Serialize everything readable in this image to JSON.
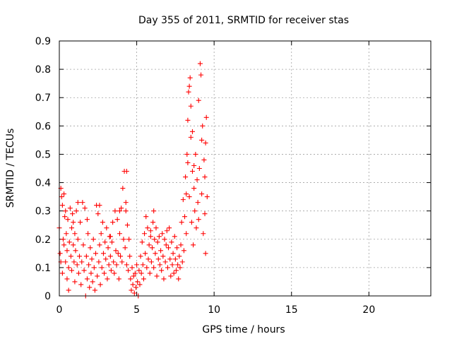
{
  "chart_data": {
    "type": "scatter",
    "title": "Day 355 of 2011, SRMTID for receiver stas",
    "xlabel": "GPS time / hours",
    "ylabel": "SRMTID / TECUs",
    "xlim": [
      0,
      24
    ],
    "ylim": [
      0,
      0.9
    ],
    "xticks": [
      0,
      5,
      10,
      15,
      20
    ],
    "xtick_labels": [
      "0",
      "5",
      "10",
      "15",
      "20"
    ],
    "yticks": [
      0,
      0.1,
      0.2,
      0.3,
      0.4,
      0.5,
      0.6,
      0.7,
      0.8,
      0.9
    ],
    "ytick_labels": [
      "0",
      "0.1",
      "0.2",
      "0.3",
      "0.4",
      "0.5",
      "0.6",
      "0.7",
      "0.8",
      "0.9"
    ],
    "grid": true,
    "marker": "+",
    "color": "#ff0000",
    "series": [
      {
        "name": "stas",
        "points": [
          [
            0.0,
            0.24
          ],
          [
            0.05,
            0.15
          ],
          [
            0.1,
            0.38
          ],
          [
            0.1,
            0.12
          ],
          [
            0.15,
            0.35
          ],
          [
            0.2,
            0.32
          ],
          [
            0.2,
            0.08
          ],
          [
            0.25,
            0.2
          ],
          [
            0.3,
            0.36
          ],
          [
            0.3,
            0.18
          ],
          [
            0.35,
            0.28
          ],
          [
            0.4,
            0.12
          ],
          [
            0.45,
            0.22
          ],
          [
            0.5,
            0.06
          ],
          [
            0.5,
            0.16
          ],
          [
            0.55,
            0.27
          ],
          [
            0.6,
            0.02
          ],
          [
            0.6,
            0.1
          ],
          [
            0.65,
            0.19
          ],
          [
            0.7,
            0.31
          ],
          [
            0.75,
            0.14
          ],
          [
            0.8,
            0.09
          ],
          [
            0.8,
            0.24
          ],
          [
            0.85,
            0.29
          ],
          [
            0.9,
            0.18
          ],
          [
            0.95,
            0.12
          ],
          [
            1.0,
            0.22
          ],
          [
            1.0,
            0.05
          ],
          [
            1.05,
            0.16
          ],
          [
            1.1,
            0.3
          ],
          [
            1.15,
            0.11
          ],
          [
            1.2,
            0.2
          ],
          [
            1.25,
            0.08
          ],
          [
            1.3,
            0.14
          ],
          [
            1.35,
            0.26
          ],
          [
            1.4,
            0.04
          ],
          [
            1.45,
            0.12
          ],
          [
            1.5,
            0.33
          ],
          [
            1.55,
            0.18
          ],
          [
            1.6,
            0.09
          ],
          [
            1.65,
            0.31
          ],
          [
            1.7,
            0.0
          ],
          [
            1.75,
            0.14
          ],
          [
            1.8,
            0.06
          ],
          [
            1.85,
            0.22
          ],
          [
            1.9,
            0.11
          ],
          [
            1.95,
            0.03
          ],
          [
            2.0,
            0.17
          ],
          [
            2.05,
            0.08
          ],
          [
            2.1,
            0.13
          ],
          [
            2.15,
            0.05
          ],
          [
            2.2,
            0.2
          ],
          [
            2.25,
            0.1
          ],
          [
            2.3,
            0.02
          ],
          [
            2.35,
            0.15
          ],
          [
            2.4,
            0.32
          ],
          [
            2.45,
            0.07
          ],
          [
            2.5,
            0.29
          ],
          [
            2.55,
            0.12
          ],
          [
            2.6,
            0.18
          ],
          [
            2.65,
            0.04
          ],
          [
            2.7,
            0.22
          ],
          [
            2.75,
            0.1
          ],
          [
            2.8,
            0.26
          ],
          [
            2.85,
            0.15
          ],
          [
            2.9,
            0.08
          ],
          [
            2.95,
            0.19
          ],
          [
            3.0,
            0.13
          ],
          [
            3.05,
            0.24
          ],
          [
            3.1,
            0.06
          ],
          [
            3.15,
            0.17
          ],
          [
            3.2,
            0.11
          ],
          [
            3.25,
            0.21
          ],
          [
            3.3,
            0.14
          ],
          [
            3.35,
            0.09
          ],
          [
            3.4,
            0.19
          ],
          [
            3.45,
            0.26
          ],
          [
            3.5,
            0.12
          ],
          [
            3.55,
            0.08
          ],
          [
            3.6,
            0.3
          ],
          [
            3.65,
            0.16
          ],
          [
            3.7,
            0.11
          ],
          [
            3.75,
            0.27
          ],
          [
            3.8,
            0.15
          ],
          [
            3.85,
            0.06
          ],
          [
            3.9,
            0.22
          ],
          [
            3.95,
            0.14
          ],
          [
            4.0,
            0.31
          ],
          [
            4.05,
            0.12
          ],
          [
            4.1,
            0.38
          ],
          [
            4.15,
            0.2
          ],
          [
            4.2,
            0.44
          ],
          [
            4.25,
            0.17
          ],
          [
            4.3,
            0.33
          ],
          [
            4.35,
            0.11
          ],
          [
            4.35,
            0.44
          ],
          [
            4.4,
            0.25
          ],
          [
            4.45,
            0.09
          ],
          [
            4.5,
            0.2
          ],
          [
            4.55,
            0.14
          ],
          [
            4.6,
            0.06
          ],
          [
            4.65,
            0.02
          ],
          [
            4.7,
            0.1
          ],
          [
            4.75,
            0.04
          ],
          [
            4.8,
            0.07
          ],
          [
            4.85,
            0.01
          ],
          [
            4.9,
            0.08
          ],
          [
            4.95,
            0.03
          ],
          [
            5.0,
            0.11
          ],
          [
            5.05,
            0.05
          ],
          [
            5.1,
            0.0
          ],
          [
            5.15,
            0.09
          ],
          [
            5.2,
            0.04
          ],
          [
            5.25,
            0.14
          ],
          [
            5.3,
            0.08
          ],
          [
            5.35,
            0.19
          ],
          [
            5.4,
            0.11
          ],
          [
            5.45,
            0.06
          ],
          [
            5.5,
            0.22
          ],
          [
            5.55,
            0.15
          ],
          [
            5.6,
            0.28
          ],
          [
            5.65,
            0.1
          ],
          [
            5.7,
            0.24
          ],
          [
            5.75,
            0.13
          ],
          [
            5.8,
            0.18
          ],
          [
            5.85,
            0.08
          ],
          [
            5.9,
            0.21
          ],
          [
            5.95,
            0.12
          ],
          [
            6.0,
            0.17
          ],
          [
            6.05,
            0.26
          ],
          [
            6.1,
            0.1
          ],
          [
            6.15,
            0.2
          ],
          [
            6.2,
            0.15
          ],
          [
            6.25,
            0.24
          ],
          [
            6.3,
            0.07
          ],
          [
            6.35,
            0.19
          ],
          [
            6.4,
            0.13
          ],
          [
            6.45,
            0.21
          ],
          [
            6.5,
            0.11
          ],
          [
            6.55,
            0.16
          ],
          [
            6.6,
            0.09
          ],
          [
            6.65,
            0.22
          ],
          [
            6.7,
            0.14
          ],
          [
            6.75,
            0.06
          ],
          [
            6.8,
            0.2
          ],
          [
            6.85,
            0.12
          ],
          [
            6.9,
            0.18
          ],
          [
            6.95,
            0.23
          ],
          [
            7.0,
            0.1
          ],
          [
            7.05,
            0.17
          ],
          [
            7.1,
            0.24
          ],
          [
            7.15,
            0.13
          ],
          [
            7.2,
            0.07
          ],
          [
            7.25,
            0.19
          ],
          [
            7.3,
            0.11
          ],
          [
            7.35,
            0.15
          ],
          [
            7.4,
            0.08
          ],
          [
            7.45,
            0.21
          ],
          [
            7.5,
            0.13
          ],
          [
            7.55,
            0.09
          ],
          [
            7.6,
            0.17
          ],
          [
            7.65,
            0.11
          ],
          [
            7.7,
            0.06
          ],
          [
            7.75,
            0.14
          ],
          [
            7.8,
            0.1
          ],
          [
            7.85,
            0.18
          ],
          [
            7.9,
            0.26
          ],
          [
            7.95,
            0.12
          ],
          [
            8.0,
            0.34
          ],
          [
            8.05,
            0.16
          ],
          [
            8.1,
            0.28
          ],
          [
            8.15,
            0.42
          ],
          [
            8.2,
            0.22
          ],
          [
            8.25,
            0.5
          ],
          [
            8.3,
            0.62
          ],
          [
            8.35,
            0.72
          ],
          [
            8.4,
            0.35
          ],
          [
            8.45,
            0.77
          ],
          [
            8.5,
            0.56
          ],
          [
            8.55,
            0.26
          ],
          [
            8.6,
            0.44
          ],
          [
            8.65,
            0.18
          ],
          [
            8.7,
            0.38
          ],
          [
            8.75,
            0.3
          ],
          [
            8.8,
            0.5
          ],
          [
            8.85,
            0.24
          ],
          [
            8.9,
            0.41
          ],
          [
            8.95,
            0.33
          ],
          [
            9.0,
            0.27
          ],
          [
            9.05,
            0.45
          ],
          [
            9.1,
            0.82
          ],
          [
            9.15,
            0.78
          ],
          [
            9.2,
            0.36
          ],
          [
            9.25,
            0.6
          ],
          [
            9.3,
            0.22
          ],
          [
            9.35,
            0.48
          ],
          [
            9.4,
            0.29
          ],
          [
            9.45,
            0.15
          ],
          [
            9.5,
            0.63
          ],
          [
            9.55,
            0.35
          ],
          [
            9.45,
            0.54
          ],
          [
            8.6,
            0.58
          ],
          [
            8.5,
            0.67
          ],
          [
            8.4,
            0.74
          ],
          [
            8.7,
            0.46
          ],
          [
            9.0,
            0.69
          ],
          [
            9.2,
            0.55
          ],
          [
            9.4,
            0.42
          ],
          [
            8.3,
            0.47
          ],
          [
            8.2,
            0.36
          ],
          [
            1.2,
            0.33
          ],
          [
            2.6,
            0.32
          ],
          [
            4.3,
            0.3
          ],
          [
            3.9,
            0.3
          ],
          [
            0.4,
            0.3
          ],
          [
            6.1,
            0.3
          ],
          [
            5.9,
            0.23
          ],
          [
            0.9,
            0.26
          ],
          [
            1.8,
            0.27
          ],
          [
            3.3,
            0.21
          ]
        ]
      }
    ]
  }
}
